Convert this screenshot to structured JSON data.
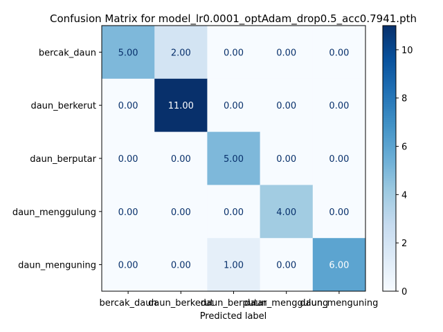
{
  "chart_data": {
    "type": "heatmap",
    "title": "Confusion Matrix for model_lr0.0001_optAdam_drop0.5_acc0.7941.pth",
    "xlabel": "Predicted label",
    "ylabel": "",
    "row_labels": [
      "bercak_daun",
      "daun_berkerut",
      "daun_berputar",
      "daun_menggulung",
      "daun_menguning"
    ],
    "col_labels": [
      "bercak_daun",
      "daun_berkerut",
      "daun_berputar",
      "daun_menggulung",
      "daun_menguning"
    ],
    "values": [
      [
        5,
        2,
        0,
        0,
        0
      ],
      [
        0,
        11,
        0,
        0,
        0
      ],
      [
        0,
        0,
        5,
        0,
        0
      ],
      [
        0,
        0,
        0,
        4,
        0
      ],
      [
        0,
        0,
        1,
        0,
        6
      ]
    ],
    "cell_labels": [
      [
        "5.00",
        "2.00",
        "0.00",
        "0.00",
        "0.00"
      ],
      [
        "0.00",
        "11.00",
        "0.00",
        "0.00",
        "0.00"
      ],
      [
        "0.00",
        "0.00",
        "5.00",
        "0.00",
        "0.00"
      ],
      [
        "0.00",
        "0.00",
        "0.00",
        "4.00",
        "0.00"
      ],
      [
        "0.00",
        "0.00",
        "1.00",
        "0.00",
        "6.00"
      ]
    ],
    "colormap": "Blues",
    "vmin": 0,
    "vmax": 11,
    "colorbar_ticks": [
      "0",
      "2",
      "4",
      "6",
      "8",
      "10"
    ],
    "colorbar_tick_values": [
      0,
      2,
      4,
      6,
      8,
      10
    ]
  }
}
